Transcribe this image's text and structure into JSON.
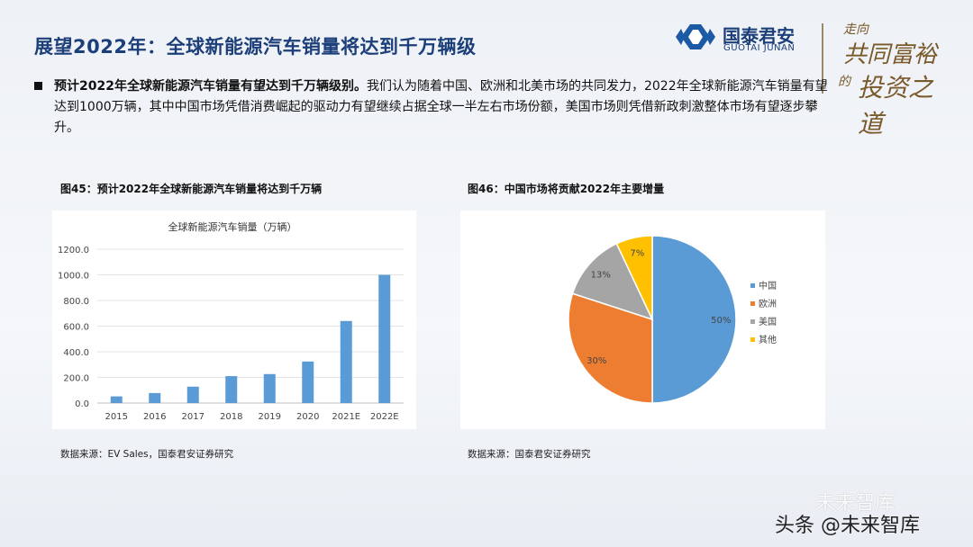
{
  "page": {
    "title": "展望2022年：全球新能源汽车销量将达到千万辆级",
    "bullet_bold": "预计2022年全球新能源汽车销量有望达到千万辆级别。",
    "bullet_rest": "我们认为随着中国、欧洲和北美市场的共同发力，2022年全球新能源汽车销量有望达到1000万辆，其中中国市场凭借消费崛起的驱动力有望继续占据全球一半左右市场份额，美国市场则凭借新政刺激整体市场有望逐步攀升。"
  },
  "logo": {
    "cn": "国泰君安",
    "en": "GUOTAI JUNAN",
    "slogan_1": "走向",
    "slogan_2": "共同富裕",
    "slogan_3": "的",
    "slogan_4": "投资之道",
    "mark_color": "#1c5aa6"
  },
  "fig45": {
    "caption": "图45：预计2022年全球新能源汽车销量将达到千万辆",
    "source": "数据来源：EV Sales，国泰君安证券研究"
  },
  "fig46": {
    "caption": "图46：中国市场将贡献2022年主要增量",
    "source": "数据来源：国泰君安证券研究"
  },
  "watermark": {
    "top": "未来智库",
    "bottom": "头条 @未来智库"
  },
  "chart_data": [
    {
      "type": "bar",
      "title": "全球新能源汽车销量（万辆）",
      "categories": [
        "2015",
        "2016",
        "2017",
        "2018",
        "2019",
        "2020",
        "2021E",
        "2022E"
      ],
      "values": [
        52,
        78,
        128,
        210,
        226,
        324,
        640,
        1000
      ],
      "ylim": [
        0,
        1200
      ],
      "yticks": [
        "0.0",
        "200.0",
        "400.0",
        "600.0",
        "800.0",
        "1000.0",
        "1200.0"
      ],
      "grid": true,
      "color": "#5b9bd5"
    },
    {
      "type": "pie",
      "labels": [
        "中国",
        "欧洲",
        "美国",
        "其他"
      ],
      "values": [
        50,
        30,
        13,
        7
      ],
      "data_labels": [
        "50%",
        "30%",
        "13%",
        "7%"
      ],
      "colors": [
        "#5b9bd5",
        "#ed7d31",
        "#a5a5a5",
        "#ffc000"
      ],
      "legend": "right"
    }
  ]
}
